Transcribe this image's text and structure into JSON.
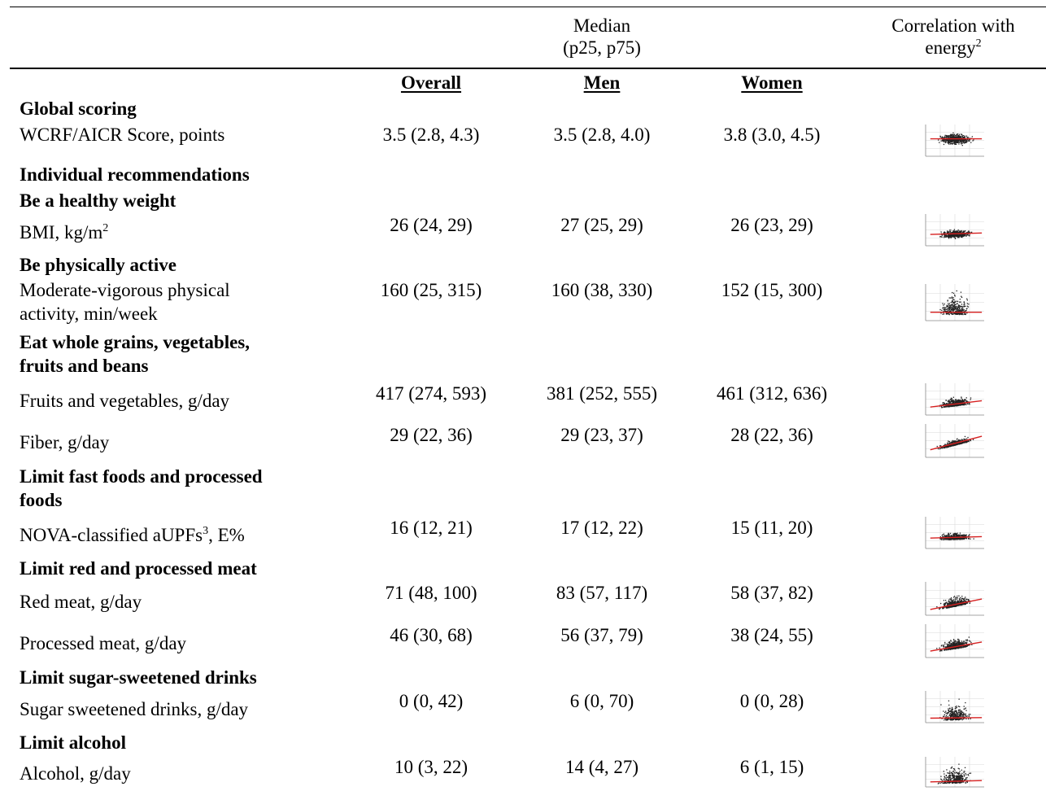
{
  "header": {
    "median_line1": "Median",
    "median_line2": "(p25, p75)",
    "corr_line1": "Correlation with",
    "corr_line2_text": "energy",
    "corr_line2_sup": "2",
    "col_overall": "Overall",
    "col_men": "Men",
    "col_women": "Women"
  },
  "sections": {
    "global": "Global scoring",
    "individual": "Individual recommendations",
    "weight": "Be a healthy weight",
    "active": "Be physically active",
    "grains_l1": "Eat whole grains, vegetables,",
    "grains_l2": "fruits and beans",
    "fast_l1": "Limit fast foods and processed",
    "fast_l2": "foods",
    "meat": "Limit red and processed meat",
    "sugar": "Limit sugar-sweetened drinks",
    "alcohol": "Limit alcohol"
  },
  "rows": {
    "wcrf": {
      "label": "WCRF/AICR Score, points",
      "overall": "3.5 (2.8, 4.3)",
      "men": "3.5 (2.8, 4.0)",
      "women": "3.8 (3.0, 4.5)"
    },
    "bmi": {
      "label": "BMI, kg/m",
      "label_sup": "2",
      "overall": "26 (24, 29)",
      "men": "27 (25, 29)",
      "women": "26 (23, 29)"
    },
    "mvpa": {
      "label_l1": "Moderate-vigorous physical",
      "label_l2": "activity, min/week",
      "overall": "160 (25, 315)",
      "men": "160 (38, 330)",
      "women": "152 (15, 300)"
    },
    "fruitveg": {
      "label": "Fruits and vegetables, g/day",
      "overall": "417 (274, 593)",
      "men": "381 (252, 555)",
      "women": "461 (312, 636)"
    },
    "fiber": {
      "label": "Fiber, g/day",
      "overall": "29 (22, 36)",
      "men": "29 (23, 37)",
      "women": "28 (22, 36)"
    },
    "aupf": {
      "label": "NOVA-classified aUPFs",
      "label_sup": "3",
      "label_after": ", E%",
      "overall": "16 (12, 21)",
      "men": "17 (12, 22)",
      "women": "15 (11, 20)"
    },
    "redmeat": {
      "label": "Red meat, g/day",
      "overall": "71 (48, 100)",
      "men": "83 (57, 117)",
      "women": "58 (37, 82)"
    },
    "procmeat": {
      "label": "Processed meat, g/day",
      "overall": "46 (30, 68)",
      "men": "56 (37, 79)",
      "women": "38 (24, 55)"
    },
    "ssb": {
      "label": "Sugar sweetened drinks, g/day",
      "overall": "0 (0, 42)",
      "men": "6 (0, 70)",
      "women": "0 (0, 28)"
    },
    "alcohol": {
      "label": "Alcohol, g/day",
      "overall": "10 (3, 22)",
      "men": "14 (4, 27)",
      "women": "6 (1, 15)"
    }
  },
  "colors": {
    "text": "#000000",
    "points": "#222222",
    "fit_line": "#d62020",
    "grid": "#d8d8d8"
  }
}
